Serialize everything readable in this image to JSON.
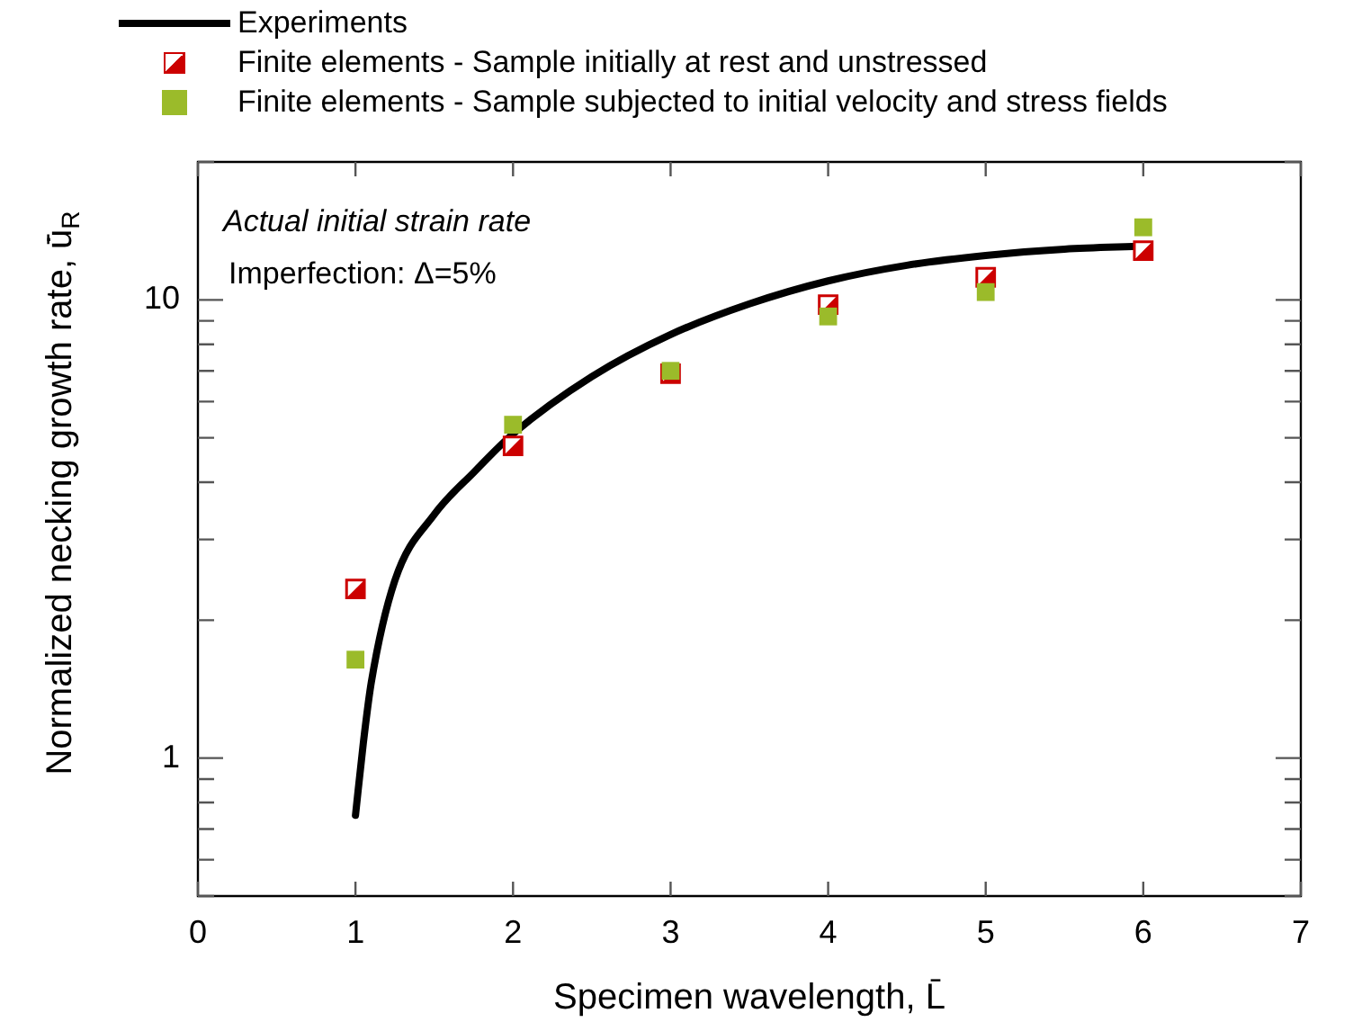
{
  "chart_data": {
    "type": "scatter",
    "xlabel": "Specimen wavelength, L̄",
    "ylabel": "Normalized necking growth rate, ū̇$_{R}$",
    "annotations": [
      "Actual initial strain rate",
      "Imperfection: Δ=5%"
    ],
    "xlim": [
      0,
      7
    ],
    "xticks": [
      0,
      1,
      2,
      3,
      4,
      5,
      6,
      7
    ],
    "ylim": [
      0.5,
      20
    ],
    "yticks": [
      {
        "value": 0.5,
        "label": null
      },
      {
        "value": 0.6,
        "label": null
      },
      {
        "value": 0.7,
        "label": null
      },
      {
        "value": 0.8,
        "label": null
      },
      {
        "value": 0.9,
        "label": null
      },
      1,
      {
        "value": 2,
        "label": null
      },
      {
        "value": 3,
        "label": null
      },
      {
        "value": 4,
        "label": null
      },
      {
        "value": 5,
        "label": null
      },
      {
        "value": 6,
        "label": null
      },
      {
        "value": 7,
        "label": null
      },
      {
        "value": 8,
        "label": null
      },
      {
        "value": 9,
        "label": null
      },
      10,
      {
        "value": 20,
        "label": null
      }
    ],
    "log": "y",
    "grid": false,
    "legend": "top left",
    "marker": "square",
    "series": [
      {
        "name": "Experiments",
        "type": "line",
        "marker": "none",
        "color": "#000000",
        "x": [
          1,
          1.05,
          1.1,
          1.25,
          1.5,
          1.75,
          2,
          2.5,
          3,
          3.5,
          4,
          4.5,
          5,
          5.5,
          6
        ],
        "values": [
          0.75,
          1.08,
          1.46,
          2.44,
          3.4,
          4.2,
          5.1,
          6.8,
          8.4,
          9.8,
          11.0,
          11.9,
          12.5,
          12.9,
          13.1
        ]
      },
      {
        "name": "Finite elements - Sample initially at rest and unstressed",
        "color": "#cc0000",
        "x": [
          1,
          2,
          3,
          4,
          5,
          6
        ],
        "values": [
          2.34,
          4.8,
          6.9,
          9.76,
          11.2,
          12.8
        ]
      },
      {
        "name": "Finite elements - Sample subjected to initial velocity and stress fields",
        "color": "#9bbb2a",
        "x": [
          1,
          2,
          3,
          4,
          5,
          6
        ],
        "values": [
          1.64,
          5.34,
          7.0,
          9.2,
          10.4,
          14.4
        ]
      }
    ]
  }
}
